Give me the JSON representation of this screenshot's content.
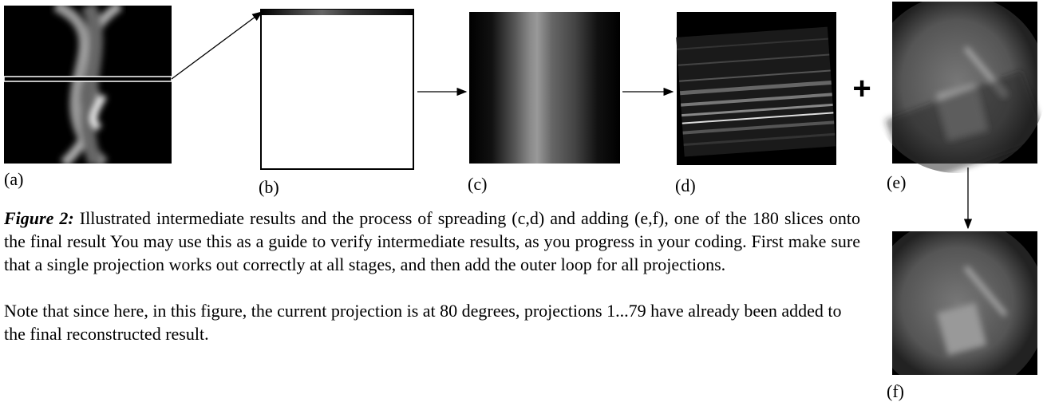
{
  "figure": {
    "panels": [
      {
        "label": "(a)"
      },
      {
        "label": "(b)"
      },
      {
        "label": "(c)"
      },
      {
        "label": "(d)"
      },
      {
        "label": "(e)"
      },
      {
        "label": "(f)"
      }
    ],
    "operator": "+",
    "caption": {
      "label": "Figure 2:",
      "text": "Illustrated intermediate results and the process of spreading (c,d) and adding (e,f), one of the 180 slices onto the final result You may use this as a guide to verify intermediate results, as you progress in your coding. First make sure that a single projection works out correctly at all stages, and then add the outer loop for all projections.",
      "note": "Note that since here, in this figure, the current projection is at 80 degrees, projections 1...79 have already been added to the final reconstructed result."
    }
  }
}
